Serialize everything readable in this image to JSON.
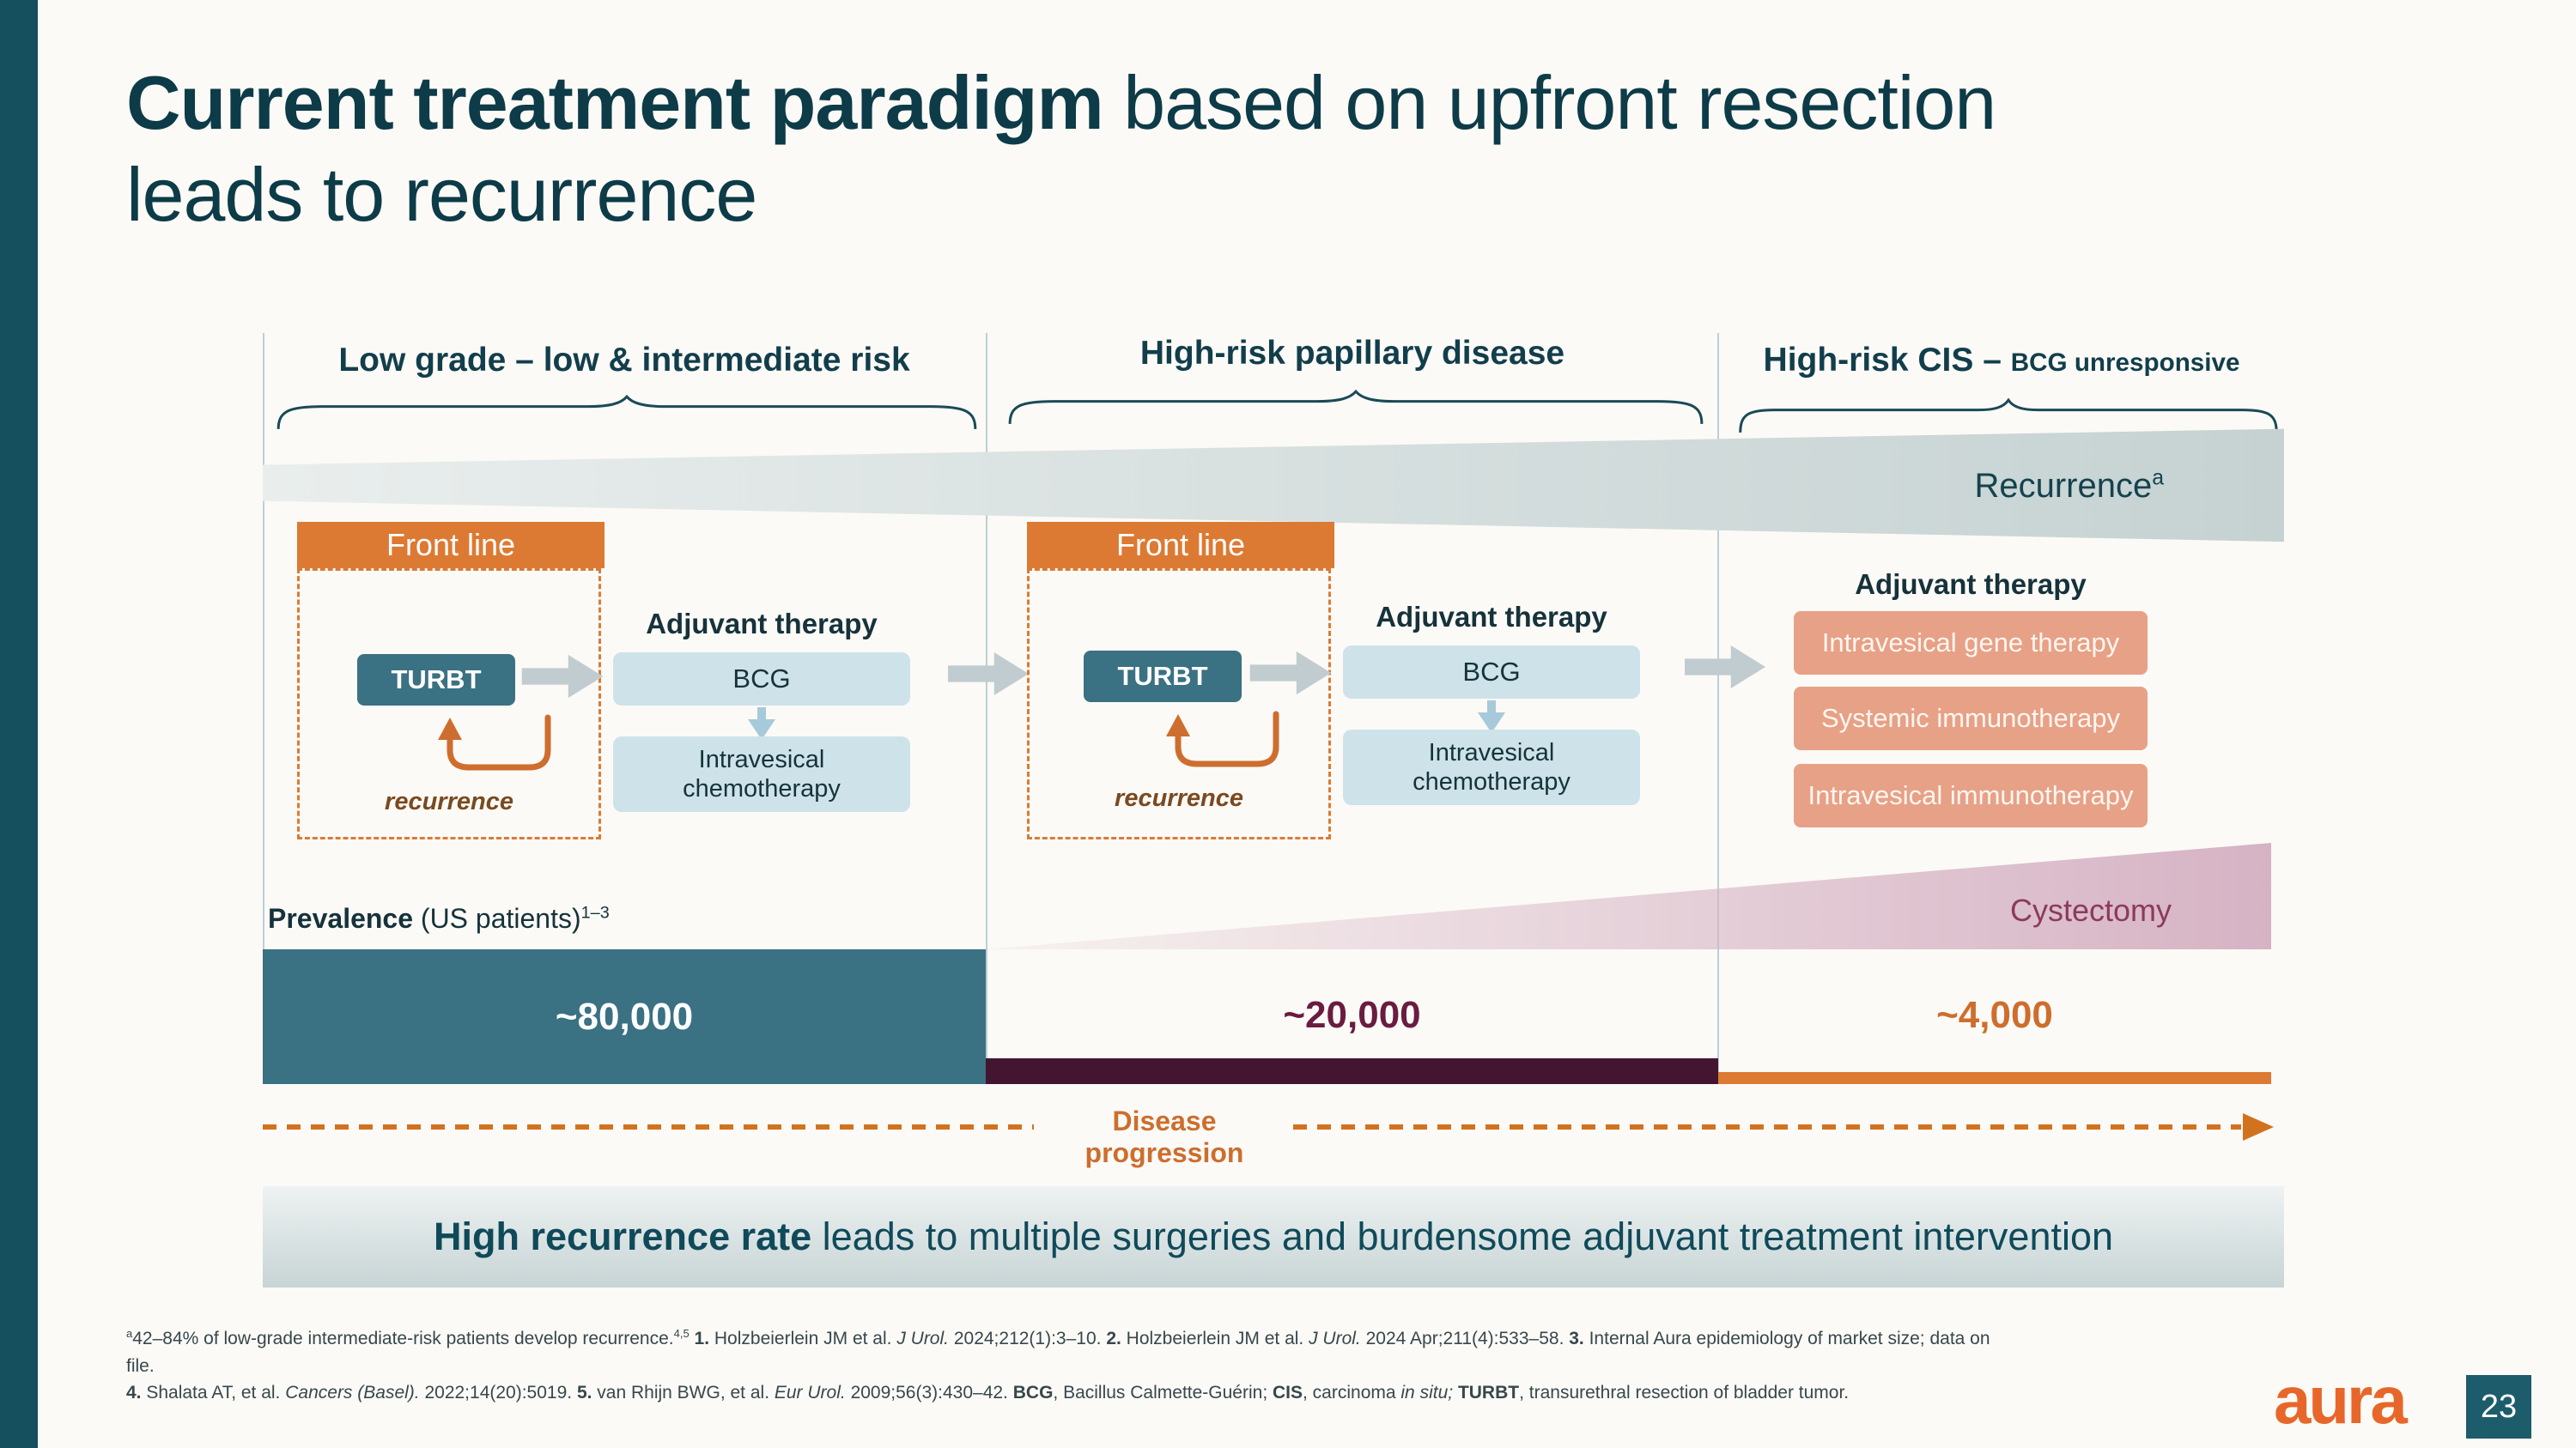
{
  "slide": {
    "title_line1": [
      {
        "t": "Current treatment paradigm",
        "b": true
      },
      {
        "t": " based on upfront resection"
      }
    ],
    "title_line2": "leads to recurrence",
    "logo_text": "aura",
    "page_number": "23"
  },
  "colors": {
    "accent_orange": "#DC7A33",
    "teal": "#3A7183",
    "dark_teal": "#14505E",
    "maroon_bar": "#431530",
    "salmon": "#E7A187",
    "light_blue": "#CEE2EA",
    "pink_wedge": "#D6B3C4",
    "gray_wedge": "#C6D2D2"
  },
  "columns": [
    {
      "header": [
        {
          "t": "Low grade – low & intermediate risk"
        }
      ],
      "front_line_label": "Front line",
      "turbt_label": "TURBT",
      "recurrence_label": "recurrence",
      "adjuvant_title": "Adjuvant therapy",
      "box1": "BCG",
      "box2": "Intravesical chemotherapy"
    },
    {
      "header": [
        {
          "t": "High-risk papillary disease"
        }
      ],
      "front_line_label": "Front line",
      "turbt_label": "TURBT",
      "recurrence_label": "recurrence",
      "adjuvant_title": "Adjuvant therapy",
      "box1": "BCG",
      "box2": "Intravesical chemotherapy"
    },
    {
      "header": [
        {
          "t": "High-risk CIS – "
        },
        {
          "t": "BCG unresponsive",
          "small": true
        }
      ],
      "adjuvant_title": "Adjuvant therapy",
      "options": [
        "Intravesical gene therapy",
        "Systemic immunotherapy",
        "Intravesical immunotherapy"
      ]
    }
  ],
  "recurrence_band": [
    {
      "t": "Recurrence"
    },
    {
      "t": "a",
      "sup": true
    }
  ],
  "cystectomy_label": "Cystectomy",
  "prevalence": {
    "label": [
      {
        "t": "Prevalence",
        "b": true
      },
      {
        "t": " (US patients)"
      },
      {
        "t": "1–3",
        "sup": true
      }
    ],
    "values": [
      "~80,000",
      "~20,000",
      "~4,000"
    ]
  },
  "disease_progression_label": "Disease progression",
  "banner": [
    {
      "t": "High recurrence rate",
      "b": true
    },
    {
      "t": " leads to multiple surgeries and burdensome adjuvant treatment intervention"
    }
  ],
  "footnotes": [
    [
      {
        "t": "a",
        "sup": true
      },
      {
        "t": "42–84% of low-grade intermediate-risk patients develop recurrence."
      },
      {
        "t": "4,5",
        "sup": true
      },
      {
        "t": " "
      },
      {
        "t": "1.",
        "b": true
      },
      {
        "t": " Holzbeierlein JM et al. "
      },
      {
        "t": "J Urol.",
        "i": true
      },
      {
        "t": " 2024;212(1):3–10. "
      },
      {
        "t": "2.",
        "b": true
      },
      {
        "t": " Holzbeierlein JM et al. "
      },
      {
        "t": "J Urol.",
        "i": true
      },
      {
        "t": " 2024 Apr;211(4):533–58. "
      },
      {
        "t": "3.",
        "b": true
      },
      {
        "t": " Internal Aura epidemiology of market size; data on"
      }
    ],
    [
      {
        "t": "file."
      }
    ],
    [
      {
        "t": "4.",
        "b": true
      },
      {
        "t": " Shalata AT, et al. "
      },
      {
        "t": "Cancers (Basel).",
        "i": true
      },
      {
        "t": " 2022;14(20):5019. "
      },
      {
        "t": "5.",
        "b": true
      },
      {
        "t": " van Rhijn BWG, et al. "
      },
      {
        "t": "Eur Urol.",
        "i": true
      },
      {
        "t": " 2009;56(3):430–42. "
      },
      {
        "t": "BCG",
        "b": true
      },
      {
        "t": ", Bacillus Calmette-Guérin; "
      },
      {
        "t": "CIS",
        "b": true
      },
      {
        "t": ", carcinoma "
      },
      {
        "t": "in situ;",
        "i": true
      },
      {
        "t": " "
      },
      {
        "t": "TURBT",
        "b": true
      },
      {
        "t": ", transurethral resection of bladder tumor."
      }
    ]
  ]
}
